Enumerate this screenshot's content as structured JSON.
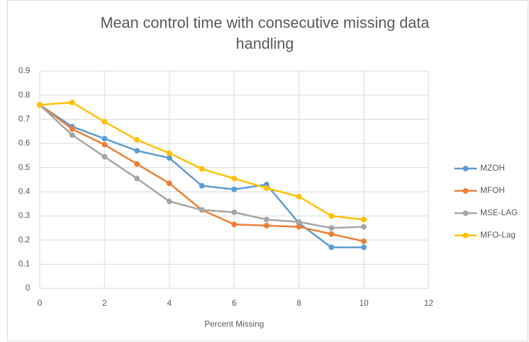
{
  "chart_data": {
    "type": "line",
    "title": "Mean control time with consecutive missing data handling",
    "x_label": "Percent Missing",
    "x": [
      0,
      1,
      2,
      3,
      4,
      5,
      6,
      7,
      8,
      9,
      10
    ],
    "xlim": [
      0,
      12
    ],
    "xticks": [
      0,
      2,
      4,
      6,
      8,
      10,
      12
    ],
    "ylim": [
      0,
      0.9
    ],
    "yticks": [
      0,
      0.1,
      0.2,
      0.3,
      0.4,
      0.5,
      0.6,
      0.7,
      0.8,
      0.9
    ],
    "grid": true,
    "legend": "right",
    "series": [
      {
        "name": "MZOH",
        "color": "#5b9bd5",
        "values": [
          0.76,
          0.67,
          0.62,
          0.57,
          0.54,
          0.425,
          0.41,
          0.43,
          0.27,
          0.17,
          0.17
        ]
      },
      {
        "name": "MFOH",
        "color": "#ed7d31",
        "values": [
          0.76,
          0.66,
          0.595,
          0.515,
          0.435,
          0.325,
          0.265,
          0.26,
          0.255,
          0.225,
          0.195
        ]
      },
      {
        "name": "MSE-LAG",
        "color": "#a5a5a5",
        "values": [
          0.76,
          0.635,
          0.545,
          0.455,
          0.36,
          0.325,
          0.315,
          0.285,
          0.275,
          0.25,
          0.255
        ]
      },
      {
        "name": "MFO-Lag",
        "color": "#ffc000",
        "values": [
          0.76,
          0.77,
          0.69,
          0.615,
          0.56,
          0.495,
          0.455,
          0.415,
          0.38,
          0.3,
          0.285
        ]
      }
    ]
  }
}
